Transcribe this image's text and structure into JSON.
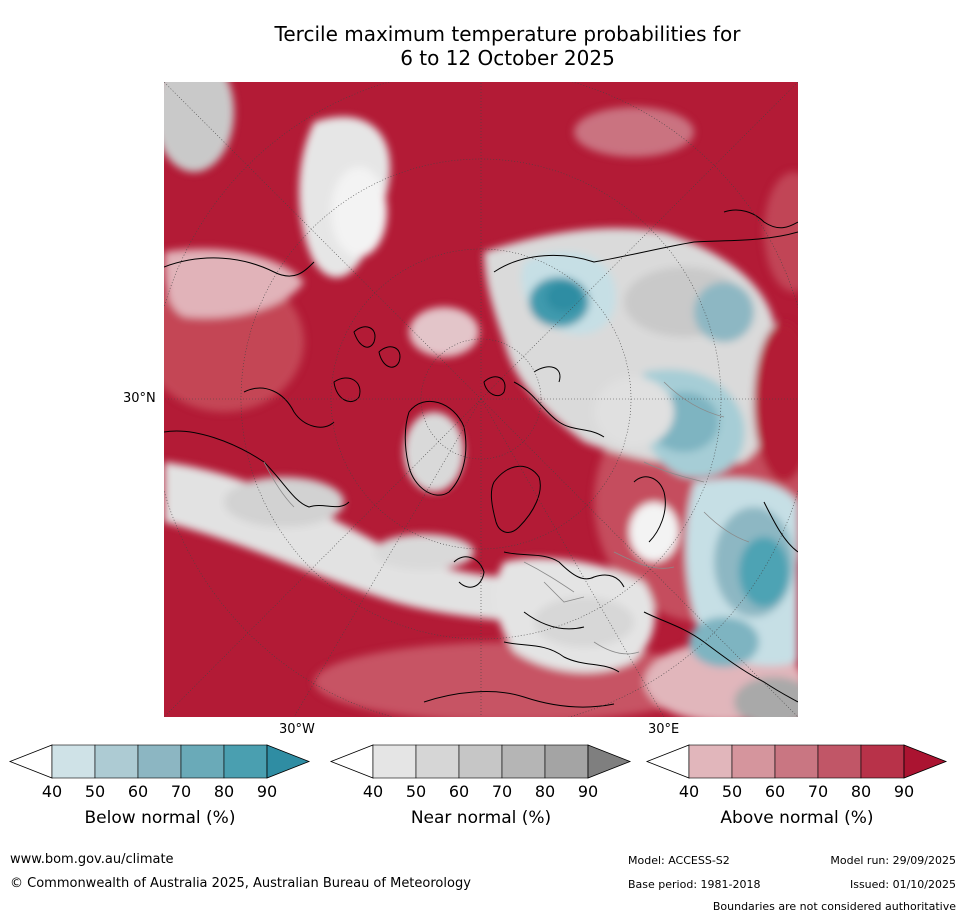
{
  "title": {
    "line1": "Tercile maximum temperature probabilities for",
    "line2": "6 to 12 October 2025"
  },
  "map": {
    "projection": "polar-stereographic-north",
    "lat_labels": [
      "30°N"
    ],
    "lon_labels": [
      "30°W",
      "30°E"
    ],
    "colors": {
      "above_dark": "#b31b36",
      "above_mid": "#c85565",
      "above_light": "#dfb4b9",
      "near_white": "#f3f3f3",
      "near_light": "#d6d6d6",
      "near_dark": "#a4a4a4",
      "below_light": "#c6dfe5",
      "below_mid": "#8db7c3",
      "below_dark": "#3f9aad"
    }
  },
  "colorbars": [
    {
      "label": "Below normal (%)",
      "ticks": [
        "40",
        "50",
        "60",
        "70",
        "80",
        "90"
      ],
      "colors": [
        "#ffffff",
        "#cfe2e7",
        "#adcbd3",
        "#8cb6c2",
        "#6aaab8",
        "#4a9fb0",
        "#2f8da3"
      ]
    },
    {
      "label": "Near normal (%)",
      "ticks": [
        "40",
        "50",
        "60",
        "70",
        "80",
        "90"
      ],
      "colors": [
        "#ffffff",
        "#e5e5e5",
        "#d6d6d6",
        "#c6c6c6",
        "#b5b5b5",
        "#a4a4a4",
        "#7f7f7f"
      ]
    },
    {
      "label": "Above normal (%)",
      "ticks": [
        "40",
        "50",
        "60",
        "70",
        "80",
        "90"
      ],
      "colors": [
        "#ffffff",
        "#e1b6bb",
        "#d5959d",
        "#c97682",
        "#c15667",
        "#b83249",
        "#ab1431"
      ]
    }
  ],
  "footer": {
    "website": "www.bom.gov.au/climate",
    "copyright": "© Commonwealth of Australia 2025, Australian Bureau of Meteorology",
    "model": "Model: ACCESS-S2",
    "model_run": "Model run: 29/09/2025",
    "base_period": "Base period: 1981-2018",
    "issued": "Issued: 01/10/2025",
    "disclaimer": "Boundaries are not considered authoritative"
  }
}
